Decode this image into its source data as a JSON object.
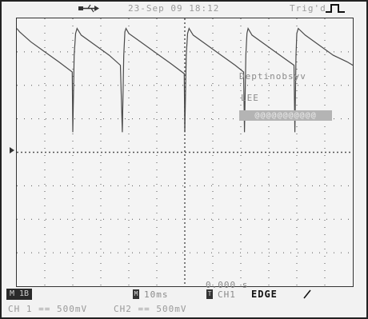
{
  "header": {
    "datetime": "23-Sep 09 18:12",
    "trigger_label": "Trig'd",
    "usb_icon": "usb-icon",
    "trigger_icon": "rising-edge-icon"
  },
  "menu": {
    "title": "Deptinobsyv",
    "value": "LEE",
    "bar": "@@@@@@@@@@@"
  },
  "trigger_time": "0.000 s",
  "status": {
    "run_badge": "M 1B",
    "timebase_badge": "M",
    "timebase": "10ms",
    "trigger_source_badge": "T",
    "trigger_source": "CH1",
    "trigger_mode": "EDGE",
    "slope_icon": "rising-slope-icon",
    "ch1_scale": "CH 1 == 500mV",
    "ch2_scale": "CH2 == 500mV"
  },
  "colors": {
    "background": "#f2f2f2",
    "grid": "#555555",
    "trace": "#4a4a4a",
    "menu_bar": "#b4b4b4"
  },
  "chart_data": {
    "type": "line",
    "title": "",
    "xlabel": "",
    "ylabel": "",
    "grid": true,
    "x_divisions": 12,
    "y_divisions": 8,
    "xlim": [
      0,
      12
    ],
    "ylim": [
      -4,
      4
    ],
    "series": [
      {
        "x": [
          0,
          0.1,
          0.5,
          1.0,
          1.5,
          1.98,
          2.0,
          2.05,
          2.1,
          2.15,
          2.3,
          2.8,
          3.3,
          3.7,
          3.77,
          3.82,
          3.86,
          3.9,
          4.0,
          4.5,
          5.0,
          5.5,
          5.98,
          6.0,
          6.05,
          6.1,
          6.15,
          6.3,
          6.8,
          7.3,
          7.8,
          8.1,
          8.13,
          8.18,
          8.22,
          8.26,
          8.4,
          8.9,
          9.4,
          9.9,
          9.93,
          9.97,
          10.0,
          10.05,
          10.3,
          10.8,
          11.3,
          11.8,
          12.0
        ],
        "y": [
          3.7,
          3.6,
          3.3,
          3.0,
          2.7,
          2.4,
          0.6,
          2.9,
          3.55,
          3.7,
          3.5,
          3.2,
          2.9,
          2.6,
          0.6,
          2.9,
          3.6,
          3.7,
          3.55,
          3.25,
          2.95,
          2.65,
          2.35,
          0.6,
          2.9,
          3.55,
          3.7,
          3.5,
          3.2,
          2.9,
          2.6,
          2.4,
          0.6,
          2.9,
          3.55,
          3.7,
          3.5,
          3.2,
          2.9,
          2.6,
          0.6,
          2.9,
          3.55,
          3.7,
          3.5,
          3.2,
          2.9,
          2.7,
          2.6
        ]
      }
    ]
  }
}
